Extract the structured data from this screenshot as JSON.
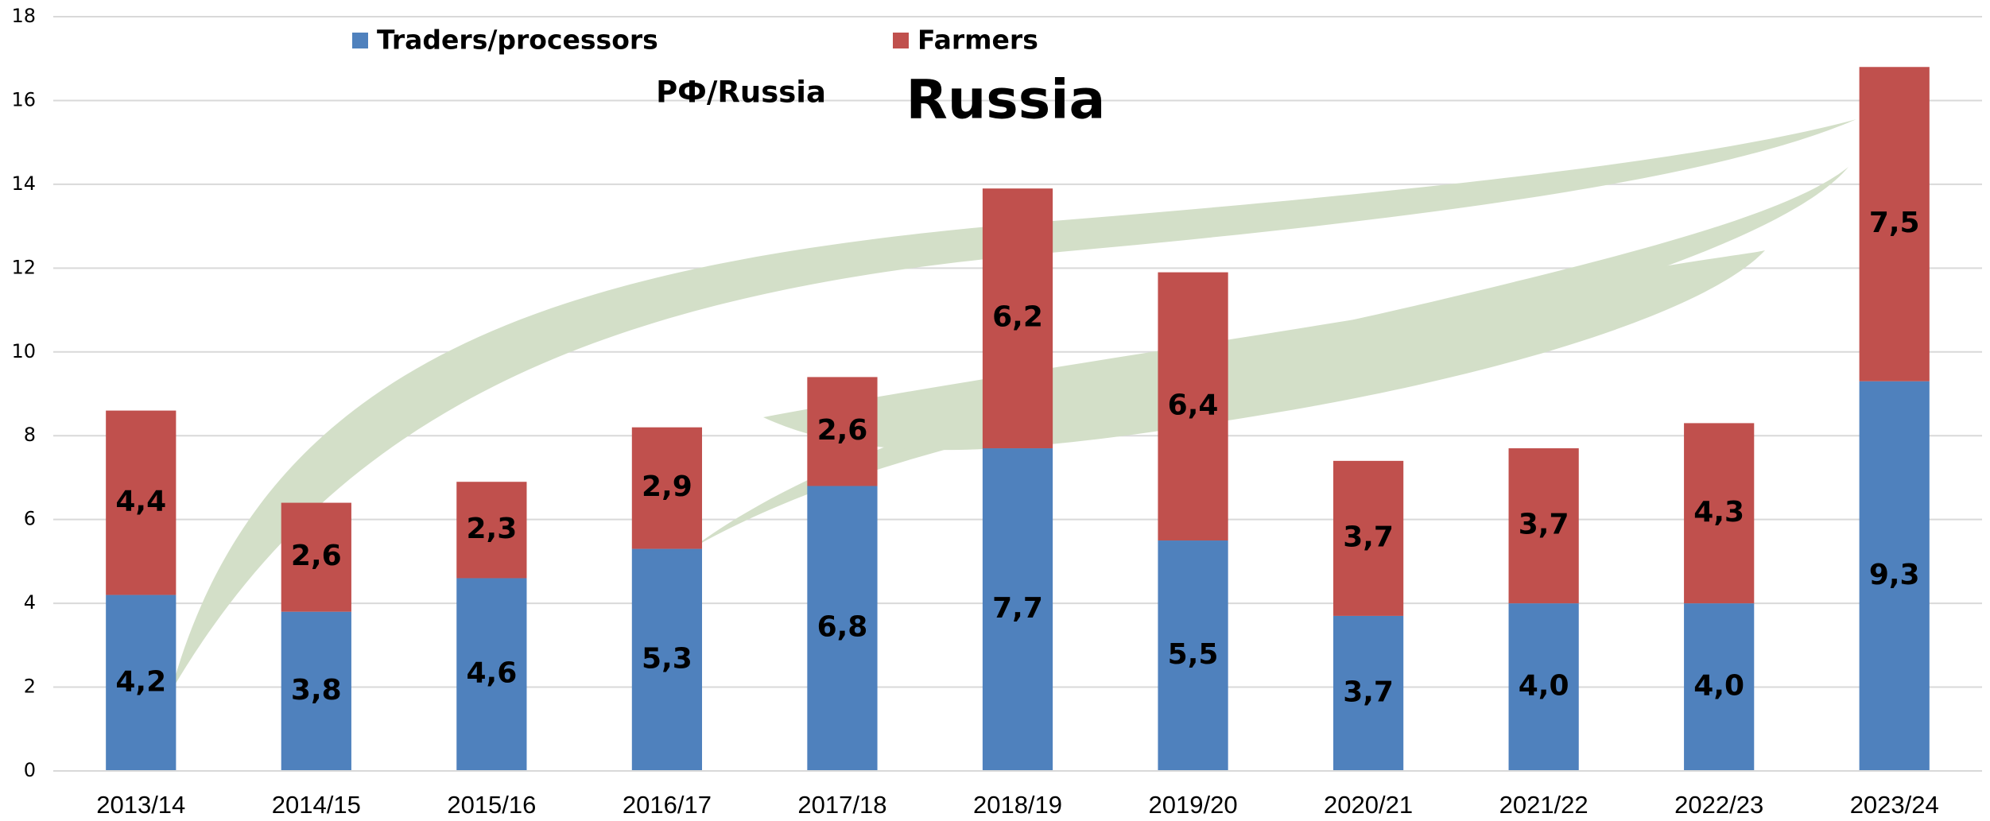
{
  "chart_data": {
    "type": "stacked_bar",
    "annotations": [
      "РФ/Russia",
      "Russia"
    ],
    "categories": [
      "2013/14",
      "2014/15",
      "2015/16",
      "2016/17",
      "2017/18",
      "2018/19",
      "2019/20",
      "2020/21",
      "2021/22",
      "2022/23",
      "2023/24"
    ],
    "series": [
      {
        "name": "Traders/processors",
        "color": "#4f81bd",
        "values": [
          4.2,
          3.8,
          4.6,
          5.3,
          6.8,
          7.7,
          5.5,
          3.7,
          4.0,
          4.0,
          9.3
        ],
        "value_labels": [
          "4,2",
          "3,8",
          "4,6",
          "5,3",
          "6,8",
          "7,7",
          "5,5",
          "3,7",
          "4,0",
          "4,0",
          "9,3"
        ]
      },
      {
        "name": "Farmers",
        "color": "#c0504d",
        "values": [
          4.4,
          2.6,
          2.3,
          2.9,
          2.6,
          6.2,
          6.4,
          3.7,
          3.7,
          4.3,
          7.5
        ],
        "value_labels": [
          "4,4",
          "2,6",
          "2,3",
          "2,9",
          "2,6",
          "6,2",
          "6,4",
          "3,7",
          "3,7",
          "4,3",
          "7,5"
        ]
      }
    ],
    "ylim": [
      0,
      18
    ],
    "yticks": [
      0,
      2,
      4,
      6,
      8,
      10,
      12,
      14,
      16,
      18
    ],
    "grid": true,
    "legend": "top"
  }
}
